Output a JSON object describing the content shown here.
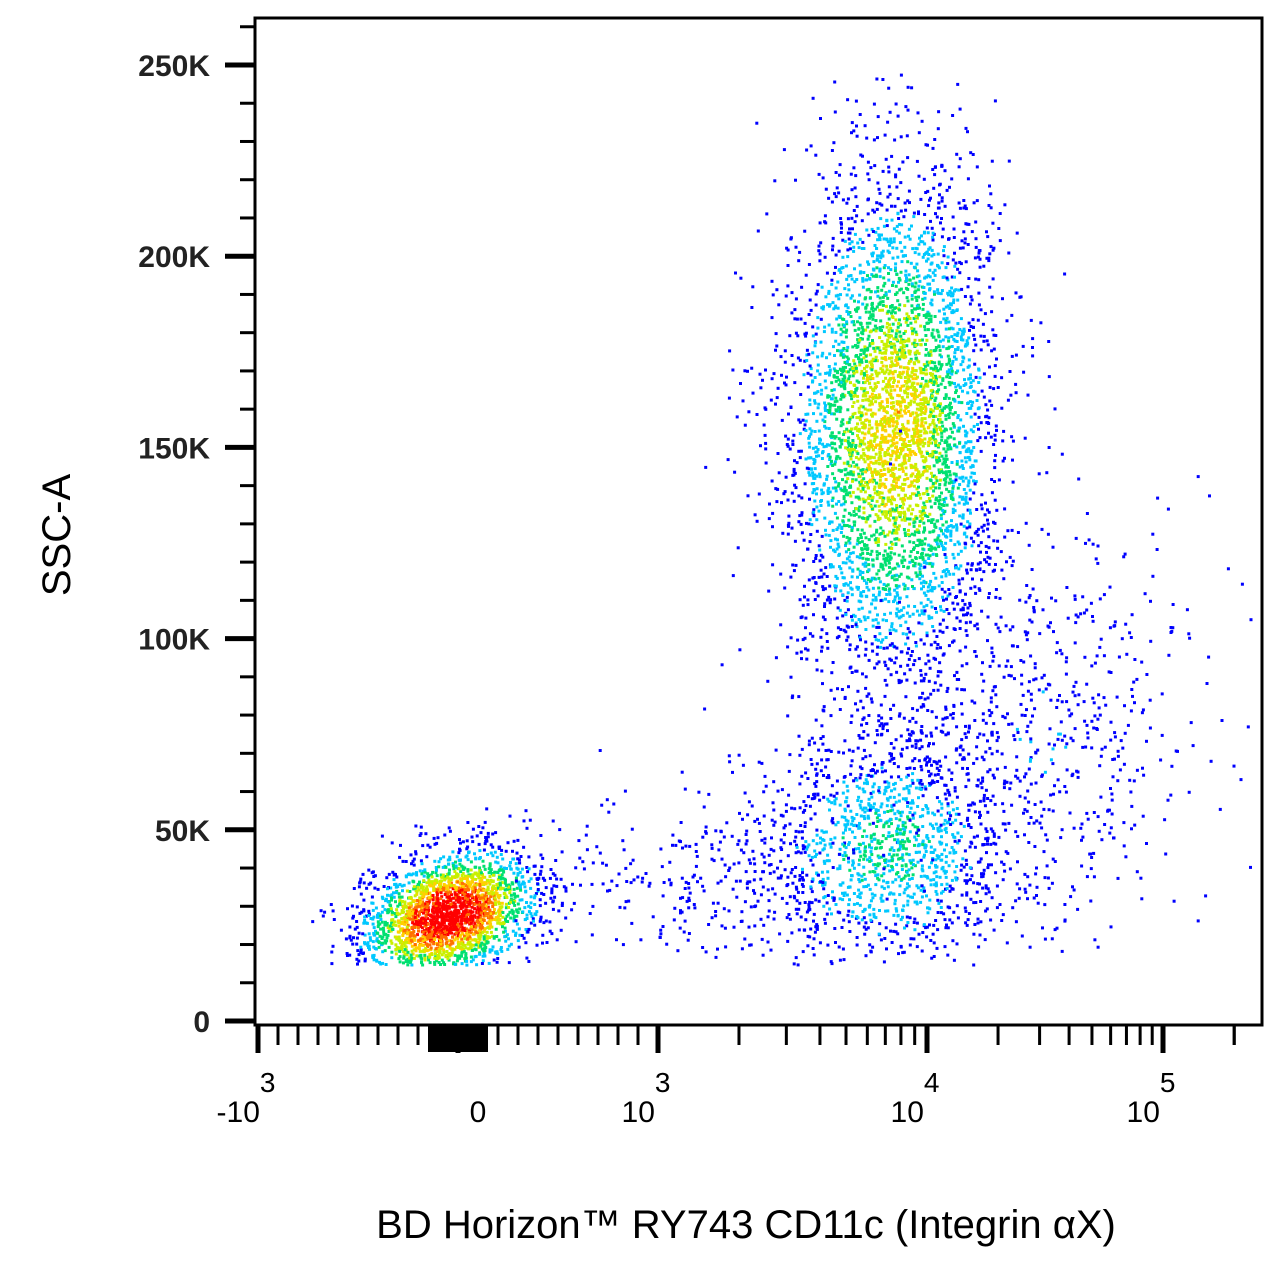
{
  "chart_data": {
    "type": "scatter",
    "style": "pseudocolor density dot plot",
    "xlabel": "BD Horizon™ RY743 CD11c (Integrin αX)",
    "ylabel": "SSC-A",
    "x_scale": "biexponential",
    "xlim": [
      -1000,
      262144
    ],
    "ylim": [
      0,
      262144
    ],
    "x_ticks": [
      {
        "value": -1000,
        "base": "-10",
        "exp": "3"
      },
      {
        "value": 0,
        "base": "0",
        "exp": ""
      },
      {
        "value": 1000,
        "base": "10",
        "exp": "3"
      },
      {
        "value": 10000,
        "base": "10",
        "exp": "4"
      },
      {
        "value": 100000,
        "base": "10",
        "exp": "5"
      }
    ],
    "y_ticks": [
      {
        "value": 0,
        "label": "0"
      },
      {
        "value": 50000,
        "label": "50K"
      },
      {
        "value": 100000,
        "label": "100K"
      },
      {
        "value": 150000,
        "label": "150K"
      },
      {
        "value": 200000,
        "label": "200K"
      },
      {
        "value": 250000,
        "label": "250K"
      }
    ],
    "grid": false,
    "density_colors": [
      "#0000ff",
      "#00c8ff",
      "#00e070",
      "#c8f000",
      "#ffd000",
      "#ff7000",
      "#ff0000"
    ],
    "populations": [
      {
        "name_hint": "CD11c-negative",
        "x_center": -50,
        "y_center": 28000,
        "x_sd": 220,
        "y_sd": 8000,
        "weight": 0.27
      },
      {
        "name_hint": "CD11c-positive high SSC",
        "x_center": 7500,
        "y_center": 155000,
        "x_sd_decades": 0.2,
        "y_sd": 33000,
        "weight": 0.48
      },
      {
        "name_hint": "CD11c-positive low SSC",
        "x_center": 7000,
        "y_center": 45000,
        "x_sd_decades": 0.25,
        "y_sd": 16000,
        "weight": 0.15
      },
      {
        "name_hint": "scattered CD11c-high",
        "x_center": 30000,
        "y_center": 75000,
        "x_sd_decades": 0.35,
        "y_sd": 28000,
        "weight": 0.07
      },
      {
        "name_hint": "scattered intermediate",
        "x_center": 1500,
        "y_center": 35000,
        "x_sd_decades": 0.3,
        "y_sd": 12000,
        "weight": 0.03
      }
    ]
  }
}
